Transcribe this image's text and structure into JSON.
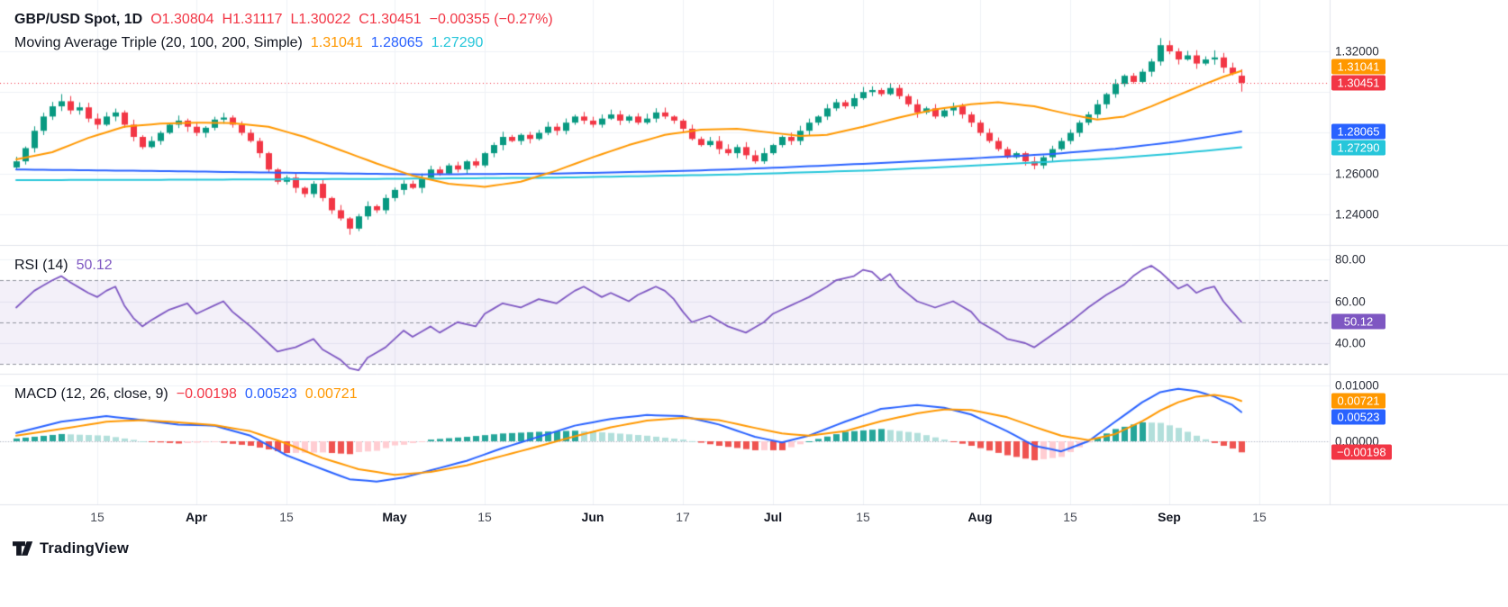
{
  "legend": {
    "price": {
      "title": "GBP/USD Spot, 1D",
      "o": "O1.30804",
      "h": "H1.31117",
      "l": "L1.30022",
      "c": "C1.30451",
      "change": "−0.00355 (−0.27%)"
    },
    "ma": {
      "title": "Moving Average Triple (20, 100, 200, Simple)",
      "v20": "1.31041",
      "v100": "1.28065",
      "v200": "1.27290"
    },
    "rsi": {
      "title": "RSI (14)",
      "value": "50.12"
    },
    "macd": {
      "title": "MACD (12, 26, close, 9)",
      "hist": "−0.00198",
      "macd": "0.00523",
      "signal": "0.00721"
    }
  },
  "footer": {
    "logo_text": "TradingView"
  },
  "colors": {
    "up": "#089981",
    "down": "#f23645",
    "ma20": "#ff9800",
    "ma100": "#2962ff",
    "ma200": "#26c6da",
    "rsi": "#7e57c2",
    "macd_line": "#2962ff",
    "signal_line": "#ff9800",
    "hist_grow_above": "#26a69a",
    "hist_fall_above": "#b2dfdb",
    "hist_grow_below": "#ffcdd2",
    "hist_fall_below": "#ef5350",
    "text": "#131722",
    "axis_text": "#2a2e39",
    "grid": "#eef0f6",
    "separator": "#e0e3eb",
    "band_fill": "rgba(126,87,194,0.09)",
    "dashed": "#8f939e",
    "zero_line": "#b2b5be"
  },
  "chart_data": {
    "type": "candlestick",
    "symbol": "GBP/USD Spot",
    "timeframe": "1D",
    "last_ohlc": {
      "o": 1.30804,
      "h": 1.31117,
      "l": 1.30022,
      "c": 1.30451
    },
    "change": -0.00355,
    "change_pct": -0.27,
    "open_first": 1.263,
    "closes": [
      1.266,
      1.2725,
      1.281,
      1.288,
      1.293,
      1.2955,
      1.291,
      1.2925,
      1.287,
      1.284,
      1.288,
      1.29,
      1.284,
      1.278,
      1.273,
      1.276,
      1.28,
      1.284,
      1.286,
      1.283,
      1.28,
      1.2825,
      1.2865,
      1.2875,
      1.284,
      1.28,
      1.276,
      1.27,
      1.262,
      1.256,
      1.258,
      1.253,
      1.25,
      1.255,
      1.248,
      1.242,
      1.238,
      1.233,
      1.239,
      1.244,
      1.242,
      1.248,
      1.252,
      1.255,
      1.253,
      1.258,
      1.262,
      1.26,
      1.264,
      1.262,
      1.266,
      1.264,
      1.27,
      1.274,
      1.278,
      1.276,
      1.279,
      1.277,
      1.28,
      1.283,
      1.281,
      1.285,
      1.288,
      1.286,
      1.284,
      1.287,
      1.289,
      1.286,
      1.288,
      1.285,
      1.287,
      1.29,
      1.288,
      1.286,
      1.282,
      1.277,
      1.274,
      1.276,
      1.272,
      1.27,
      1.273,
      1.269,
      1.266,
      1.27,
      1.274,
      1.278,
      1.276,
      1.281,
      1.285,
      1.288,
      1.292,
      1.295,
      1.293,
      1.297,
      1.3,
      1.301,
      1.299,
      1.302,
      1.298,
      1.294,
      1.29,
      1.292,
      1.288,
      1.291,
      1.293,
      1.289,
      1.285,
      1.28,
      1.276,
      1.272,
      1.268,
      1.27,
      1.266,
      1.264,
      1.268,
      1.272,
      1.276,
      1.28,
      1.285,
      1.289,
      1.294,
      1.299,
      1.304,
      1.308,
      1.305,
      1.31,
      1.315,
      1.323,
      1.32,
      1.316,
      1.318,
      1.314,
      1.316,
      1.317,
      1.312,
      1.309,
      1.30451
    ],
    "wick_overrides": {
      "5": {
        "h": 1.299
      },
      "37": {
        "l": 1.23
      },
      "127": {
        "h": 1.3265
      },
      "133": {
        "h": 1.3205
      }
    },
    "current_price": 1.30451,
    "price_gridlines": [
      1.24,
      1.26,
      1.28,
      1.3,
      1.32
    ],
    "price_axis_labels": [
      {
        "text": "1.32000",
        "value": 1.32
      },
      {
        "text": "1.26000",
        "value": 1.26
      },
      {
        "text": "1.24000",
        "value": 1.24
      }
    ],
    "price_badges": [
      {
        "text": "1.31041",
        "value": 1.31041,
        "colorKey": "ma20"
      },
      {
        "text": "1.30451",
        "value": 1.30451,
        "colorKey": "down"
      },
      {
        "text": "1.28065",
        "value": 1.28065,
        "colorKey": "ma100"
      },
      {
        "text": "1.27290",
        "value": 1.2729,
        "colorKey": "ma200"
      }
    ],
    "time_labels": [
      {
        "text": "15",
        "bar": 9,
        "month": false
      },
      {
        "text": "Apr",
        "bar": 20,
        "month": true
      },
      {
        "text": "15",
        "bar": 30,
        "month": false
      },
      {
        "text": "May",
        "bar": 42,
        "month": true
      },
      {
        "text": "15",
        "bar": 52,
        "month": false
      },
      {
        "text": "Jun",
        "bar": 64,
        "month": true
      },
      {
        "text": "17",
        "bar": 74,
        "month": false
      },
      {
        "text": "Jul",
        "bar": 84,
        "month": true
      },
      {
        "text": "15",
        "bar": 94,
        "month": false
      },
      {
        "text": "Aug",
        "bar": 107,
        "month": true
      },
      {
        "text": "15",
        "bar": 117,
        "month": false
      },
      {
        "text": "Sep",
        "bar": 128,
        "month": true
      },
      {
        "text": "15",
        "bar": 138,
        "month": false
      }
    ],
    "sma20": [
      [
        0,
        1.267
      ],
      [
        4,
        1.2705
      ],
      [
        8,
        1.2775
      ],
      [
        12,
        1.283
      ],
      [
        16,
        1.2845
      ],
      [
        20,
        1.285
      ],
      [
        24,
        1.2848
      ],
      [
        28,
        1.283
      ],
      [
        32,
        1.278
      ],
      [
        36,
        1.2715
      ],
      [
        40,
        1.265
      ],
      [
        44,
        1.259
      ],
      [
        48,
        1.255
      ],
      [
        52,
        1.2535
      ],
      [
        56,
        1.256
      ],
      [
        60,
        1.2615
      ],
      [
        64,
        1.268
      ],
      [
        68,
        1.274
      ],
      [
        72,
        1.279
      ],
      [
        76,
        1.2815
      ],
      [
        80,
        1.282
      ],
      [
        84,
        1.28
      ],
      [
        87,
        1.2785
      ],
      [
        90,
        1.279
      ],
      [
        94,
        1.283
      ],
      [
        98,
        1.2875
      ],
      [
        102,
        1.2915
      ],
      [
        106,
        1.294
      ],
      [
        109,
        1.295
      ],
      [
        113,
        1.293
      ],
      [
        117,
        1.289
      ],
      [
        120,
        1.2865
      ],
      [
        123,
        1.288
      ],
      [
        126,
        1.293
      ],
      [
        129,
        1.2985
      ],
      [
        132,
        1.304
      ],
      [
        134,
        1.3075
      ],
      [
        136,
        1.31041
      ]
    ],
    "sma100": [
      [
        0,
        1.262
      ],
      [
        15,
        1.2613
      ],
      [
        30,
        1.2604
      ],
      [
        45,
        1.2596
      ],
      [
        60,
        1.26
      ],
      [
        75,
        1.2614
      ],
      [
        85,
        1.263
      ],
      [
        95,
        1.265
      ],
      [
        105,
        1.2672
      ],
      [
        115,
        1.2696
      ],
      [
        122,
        1.2722
      ],
      [
        128,
        1.2752
      ],
      [
        132,
        1.2778
      ],
      [
        136,
        1.28065
      ]
    ],
    "sma200": [
      [
        0,
        1.2568
      ],
      [
        20,
        1.257
      ],
      [
        40,
        1.2574
      ],
      [
        60,
        1.258
      ],
      [
        80,
        1.2596
      ],
      [
        95,
        1.2616
      ],
      [
        105,
        1.2636
      ],
      [
        115,
        1.2659
      ],
      [
        122,
        1.2676
      ],
      [
        128,
        1.2696
      ],
      [
        132,
        1.2712
      ],
      [
        136,
        1.2729
      ]
    ],
    "rsi": {
      "period": 14,
      "last": 50.12,
      "band": [
        30,
        70
      ],
      "levels": [
        70,
        50,
        30
      ],
      "gridlines": [
        80,
        60,
        40
      ],
      "axis_labels": [
        {
          "text": "80.00",
          "value": 80
        },
        {
          "text": "60.00",
          "value": 60
        },
        {
          "text": "40.00",
          "value": 40
        }
      ],
      "badge": {
        "text": "50.12",
        "value": 50.12
      },
      "anchors": [
        [
          0,
          57
        ],
        [
          2,
          65
        ],
        [
          4,
          70
        ],
        [
          5,
          72
        ],
        [
          6,
          69
        ],
        [
          8,
          64
        ],
        [
          9,
          62
        ],
        [
          10,
          65
        ],
        [
          11,
          67
        ],
        [
          12,
          58
        ],
        [
          13,
          52
        ],
        [
          14,
          48
        ],
        [
          15,
          51
        ],
        [
          17,
          56
        ],
        [
          19,
          59
        ],
        [
          20,
          54
        ],
        [
          22,
          58
        ],
        [
          23,
          60
        ],
        [
          24,
          55
        ],
        [
          26,
          48
        ],
        [
          28,
          40
        ],
        [
          29,
          36
        ],
        [
          31,
          38
        ],
        [
          33,
          42
        ],
        [
          34,
          37
        ],
        [
          36,
          32
        ],
        [
          37,
          28
        ],
        [
          38,
          27
        ],
        [
          39,
          33
        ],
        [
          41,
          38
        ],
        [
          42,
          42
        ],
        [
          43,
          46
        ],
        [
          44,
          43
        ],
        [
          46,
          48
        ],
        [
          47,
          45
        ],
        [
          49,
          50
        ],
        [
          51,
          48
        ],
        [
          52,
          54
        ],
        [
          54,
          59
        ],
        [
          56,
          57
        ],
        [
          58,
          61
        ],
        [
          60,
          59
        ],
        [
          62,
          65
        ],
        [
          63,
          67
        ],
        [
          65,
          62
        ],
        [
          66,
          64
        ],
        [
          68,
          60
        ],
        [
          69,
          63
        ],
        [
          71,
          67
        ],
        [
          72,
          65
        ],
        [
          73,
          61
        ],
        [
          74,
          55
        ],
        [
          75,
          50
        ],
        [
          77,
          53
        ],
        [
          79,
          48
        ],
        [
          81,
          45
        ],
        [
          83,
          50
        ],
        [
          84,
          54
        ],
        [
          86,
          58
        ],
        [
          88,
          62
        ],
        [
          90,
          67
        ],
        [
          91,
          70
        ],
        [
          93,
          72
        ],
        [
          94,
          75
        ],
        [
          95,
          74
        ],
        [
          96,
          70
        ],
        [
          97,
          73
        ],
        [
          98,
          67
        ],
        [
          100,
          60
        ],
        [
          102,
          57
        ],
        [
          104,
          60
        ],
        [
          106,
          55
        ],
        [
          107,
          50
        ],
        [
          109,
          45
        ],
        [
          110,
          42
        ],
        [
          112,
          40
        ],
        [
          113,
          38
        ],
        [
          115,
          44
        ],
        [
          117,
          50
        ],
        [
          119,
          57
        ],
        [
          121,
          63
        ],
        [
          123,
          68
        ],
        [
          124,
          72
        ],
        [
          125,
          75
        ],
        [
          126,
          77
        ],
        [
          127,
          74
        ],
        [
          128,
          70
        ],
        [
          129,
          66
        ],
        [
          130,
          68
        ],
        [
          131,
          64
        ],
        [
          132,
          66
        ],
        [
          133,
          67
        ],
        [
          134,
          60
        ],
        [
          135,
          55
        ],
        [
          136,
          50.12
        ]
      ]
    },
    "macd": {
      "params": [
        12,
        26,
        9
      ],
      "last_macd": 0.00523,
      "last_signal": 0.00721,
      "last_hist": -0.00198,
      "gridlines": [
        0.01,
        0
      ],
      "axis_labels": [
        {
          "text": "0.01000",
          "value": 0.01
        },
        {
          "text": "0.00000",
          "value": 0
        }
      ],
      "badges": [
        {
          "text": "0.00721",
          "value": 0.00721,
          "colorKey": "signal_line"
        },
        {
          "text": "0.00523",
          "value": 0.00523,
          "colorKey": "macd_line"
        },
        {
          "text": "−0.00198",
          "value": -0.00198,
          "colorKey": "down"
        }
      ],
      "macd_anchors": [
        [
          0,
          0.0015
        ],
        [
          5,
          0.0035
        ],
        [
          10,
          0.0045
        ],
        [
          14,
          0.0038
        ],
        [
          18,
          0.003
        ],
        [
          22,
          0.0028
        ],
        [
          26,
          0.001
        ],
        [
          30,
          -0.0025
        ],
        [
          34,
          -0.005
        ],
        [
          37,
          -0.0068
        ],
        [
          40,
          -0.0072
        ],
        [
          43,
          -0.0065
        ],
        [
          46,
          -0.0052
        ],
        [
          50,
          -0.0035
        ],
        [
          54,
          -0.0012
        ],
        [
          58,
          0.0008
        ],
        [
          62,
          0.0028
        ],
        [
          66,
          0.004
        ],
        [
          70,
          0.0047
        ],
        [
          74,
          0.0045
        ],
        [
          78,
          0.003
        ],
        [
          82,
          0.0008
        ],
        [
          85,
          -0.0002
        ],
        [
          88,
          0.001
        ],
        [
          92,
          0.0035
        ],
        [
          96,
          0.0058
        ],
        [
          100,
          0.0065
        ],
        [
          103,
          0.006
        ],
        [
          106,
          0.0048
        ],
        [
          110,
          0.0018
        ],
        [
          113,
          -0.0008
        ],
        [
          116,
          -0.0018
        ],
        [
          119,
          0.0
        ],
        [
          122,
          0.0035
        ],
        [
          125,
          0.007
        ],
        [
          127,
          0.0088
        ],
        [
          129,
          0.0094
        ],
        [
          131,
          0.009
        ],
        [
          133,
          0.008
        ],
        [
          135,
          0.0065
        ],
        [
          136,
          0.00523
        ]
      ],
      "signal_anchors": [
        [
          0,
          0.001
        ],
        [
          5,
          0.0022
        ],
        [
          10,
          0.0035
        ],
        [
          14,
          0.0038
        ],
        [
          18,
          0.0034
        ],
        [
          22,
          0.0029
        ],
        [
          26,
          0.0018
        ],
        [
          30,
          -0.0004
        ],
        [
          34,
          -0.003
        ],
        [
          38,
          -0.005
        ],
        [
          42,
          -0.006
        ],
        [
          46,
          -0.0055
        ],
        [
          50,
          -0.0043
        ],
        [
          54,
          -0.0026
        ],
        [
          58,
          -0.0009
        ],
        [
          62,
          0.0009
        ],
        [
          66,
          0.0025
        ],
        [
          70,
          0.0037
        ],
        [
          74,
          0.0042
        ],
        [
          78,
          0.0038
        ],
        [
          82,
          0.0024
        ],
        [
          85,
          0.0014
        ],
        [
          88,
          0.001
        ],
        [
          92,
          0.0018
        ],
        [
          96,
          0.0036
        ],
        [
          100,
          0.005
        ],
        [
          103,
          0.0057
        ],
        [
          106,
          0.0056
        ],
        [
          110,
          0.0043
        ],
        [
          113,
          0.0026
        ],
        [
          116,
          0.001
        ],
        [
          119,
          0.0002
        ],
        [
          122,
          0.0013
        ],
        [
          125,
          0.0036
        ],
        [
          127,
          0.0055
        ],
        [
          129,
          0.007
        ],
        [
          131,
          0.008
        ],
        [
          133,
          0.0083
        ],
        [
          135,
          0.0078
        ],
        [
          136,
          0.00721
        ]
      ]
    }
  }
}
